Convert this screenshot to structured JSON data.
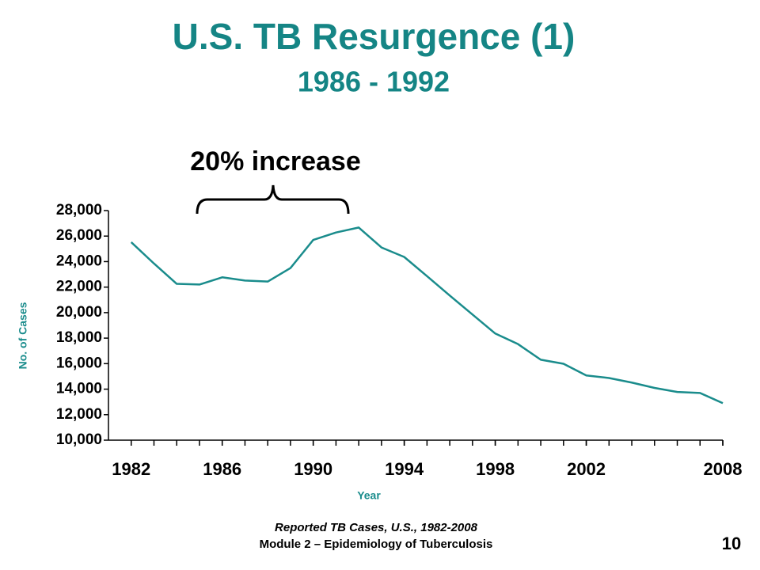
{
  "chart_data": {
    "type": "line",
    "title": "U.S. TB Resurgence (1)",
    "subtitle": "1986 - 1992",
    "annotation": "20% increase",
    "y_label": "No. of Cases",
    "x_label": "Year",
    "x": [
      1982,
      1983,
      1984,
      1985,
      1986,
      1987,
      1988,
      1989,
      1990,
      1991,
      1992,
      1993,
      1994,
      1995,
      1996,
      1997,
      1998,
      1999,
      2000,
      2001,
      2002,
      2003,
      2004,
      2005,
      2006,
      2007,
      2008
    ],
    "series": [
      {
        "name": "Reported TB Cases",
        "color": "#1a8c8c",
        "values": [
          25520,
          23850,
          22255,
          22201,
          22768,
          22517,
          22436,
          23495,
          25701,
          26283,
          26673,
          25107,
          24361,
          22860,
          21337,
          19851,
          18361,
          17531,
          16309,
          15989,
          15075,
          14874,
          14517,
          14097,
          13779,
          13700,
          12900
        ]
      }
    ],
    "xlim": [
      1981,
      2008
    ],
    "xticks": [
      1982,
      1986,
      1990,
      1994,
      1998,
      2002,
      2008
    ],
    "ylim": [
      10000,
      28000
    ],
    "yticks": [
      {
        "value": 10000,
        "label": "10,000"
      },
      {
        "value": 12000,
        "label": "12,000"
      },
      {
        "value": 14000,
        "label": "14,000"
      },
      {
        "value": 16000,
        "label": "16,000"
      },
      {
        "value": 18000,
        "label": "18,000"
      },
      {
        "value": 20000,
        "label": "20,000"
      },
      {
        "value": 22000,
        "label": "22,000"
      },
      {
        "value": 24000,
        "label": "24,000"
      },
      {
        "value": 26000,
        "label": "26,000"
      },
      {
        "value": 28000,
        "label": "28,000"
      }
    ],
    "grid": false
  },
  "footer": {
    "caption": "Reported TB Cases, U.S., 1982-2008",
    "module": "Module 2 – Epidemiology of Tuberculosis",
    "page": "10"
  }
}
